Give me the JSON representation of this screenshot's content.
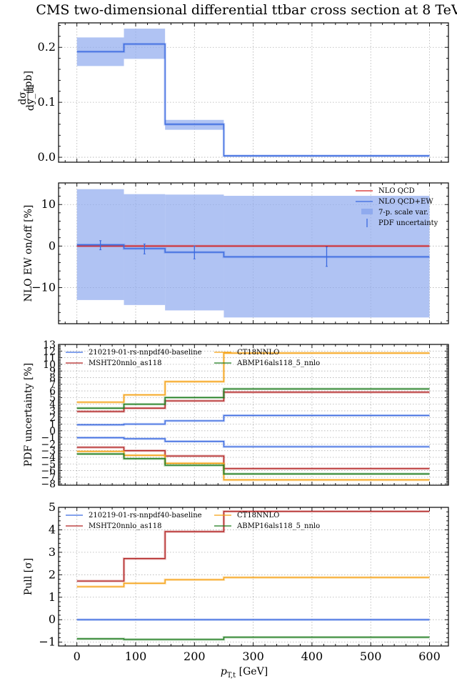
{
  "figure_title": "CMS two-dimensional differential ttbar cross section at 8 TeV",
  "colors": {
    "blue": "#3b6ae0",
    "band": "#8faaee",
    "red": "#d42020",
    "dark_red": "#b22222",
    "orange": "#f5a010",
    "green": "#1a7a1a"
  },
  "chart_data": [
    {
      "type": "line",
      "id": "xsec",
      "title": "CMS two-dimensional differential ttbar cross section at 8 TeV",
      "xlabel": "",
      "ylabel": "dσ/dy_tt [pb]",
      "ylabel_fraction": {
        "num": "dσ",
        "den": "dy_tt",
        "unit": "[pb]"
      },
      "bin_edges": [
        0,
        80,
        150,
        250,
        600
      ],
      "ylim": [
        -0.009,
        0.2445
      ],
      "yticks": [
        0.0,
        0.1,
        0.2
      ],
      "ytick_labels": [
        "0.0",
        "0.1",
        "0.2"
      ],
      "grid": true,
      "series": [
        {
          "name": "central",
          "style": "step",
          "color": "blue",
          "values": [
            0.192,
            0.206,
            0.06,
            0.0026
          ]
        },
        {
          "name": "band",
          "style": "band",
          "color": "band",
          "lower": [
            0.166,
            0.179,
            0.05,
            0.0012
          ],
          "upper": [
            0.218,
            0.234,
            0.068,
            0.004
          ]
        }
      ]
    },
    {
      "type": "line",
      "id": "ew",
      "xlabel": "",
      "ylabel": "NLO EW on/off [%]",
      "bin_edges": [
        0,
        80,
        150,
        250,
        600
      ],
      "ylim": [
        -18.7,
        15.2
      ],
      "yticks": [
        -10,
        0,
        10
      ],
      "ytick_labels": [
        "−10",
        "0",
        "10"
      ],
      "grid": true,
      "legend": {
        "placement": "top-right",
        "entries": [
          {
            "label": "NLO QCD",
            "kind": "line",
            "color": "red"
          },
          {
            "label": "NLO QCD+EW",
            "kind": "line",
            "color": "blue"
          },
          {
            "label": "7-p. scale var.",
            "kind": "patch",
            "color": "band"
          },
          {
            "label": "PDF uncertainty",
            "kind": "errorbar",
            "color": "blue"
          }
        ]
      },
      "series": [
        {
          "name": "7-p. scale var.",
          "style": "band",
          "color": "band",
          "lower": [
            -13.0,
            -14.2,
            -15.5,
            -17.2
          ],
          "upper": [
            13.7,
            12.5,
            12.4,
            12.1
          ]
        },
        {
          "name": "NLO QCD",
          "style": "step",
          "color": "red",
          "values": [
            0,
            0,
            0,
            0
          ]
        },
        {
          "name": "NLO QCD+EW",
          "style": "step",
          "color": "blue",
          "values": [
            0.3,
            -0.6,
            -1.5,
            -2.6
          ]
        },
        {
          "name": "PDF uncertainty",
          "style": "errorbar",
          "color": "blue",
          "x": [
            40,
            115,
            200,
            425
          ],
          "lower": [
            -0.9,
            -1.9,
            -3.1,
            -4.9
          ],
          "upper": [
            1.3,
            0.5,
            0.0,
            -0.2
          ]
        }
      ]
    },
    {
      "type": "line",
      "id": "pdfunc",
      "xlabel": "",
      "ylabel": "PDF uncertainty [%]",
      "bin_edges": [
        0,
        80,
        150,
        250,
        600
      ],
      "ylim": [
        -8.2,
        13.0
      ],
      "yticks": [
        -8,
        -7,
        -6,
        -5,
        -4,
        -3,
        -2,
        -1,
        0,
        1,
        2,
        3,
        4,
        5,
        6,
        7,
        8,
        9,
        10,
        11,
        12,
        13
      ],
      "ytick_labels": [
        "−8",
        "−7",
        "−6",
        "−5",
        "−4",
        "−3",
        "−2",
        "−1",
        "0",
        "1",
        "2",
        "3",
        "4",
        "5",
        "6",
        "7",
        "8",
        "9",
        "10",
        "11",
        "12",
        "13"
      ],
      "grid": true,
      "legend": {
        "placement": "top-left",
        "columns": 2,
        "entries": [
          {
            "label": "210219-01-rs-nnpdf40-baseline",
            "color": "blue"
          },
          {
            "label": "MSHT20nnlo_as118",
            "color": "dark_red"
          },
          {
            "label": "CT18NNLO",
            "color": "orange"
          },
          {
            "label": "ABMP16als118_5_nnlo",
            "color": "green"
          }
        ]
      },
      "series": [
        {
          "name": "210219-01-rs-nnpdf40-baseline",
          "color": "blue",
          "upper": [
            0.9,
            1.0,
            1.5,
            2.3
          ],
          "lower": [
            -1.05,
            -1.2,
            -1.6,
            -2.4
          ]
        },
        {
          "name": "MSHT20nnlo_as118",
          "color": "dark_red",
          "upper": [
            2.9,
            3.4,
            4.5,
            5.8
          ],
          "lower": [
            -2.5,
            -3.0,
            -3.8,
            -5.7
          ]
        },
        {
          "name": "CT18NNLO",
          "color": "orange",
          "upper": [
            4.3,
            5.4,
            7.4,
            11.7
          ],
          "lower": [
            -3.1,
            -3.7,
            -4.9,
            -7.4
          ]
        },
        {
          "name": "ABMP16als118_5_nnlo",
          "color": "green",
          "upper": [
            3.4,
            4.0,
            5.0,
            6.3
          ],
          "lower": [
            -3.5,
            -4.2,
            -5.2,
            -6.5
          ]
        }
      ]
    },
    {
      "type": "line",
      "id": "pull",
      "xlabel": "p_T,t [GeV]",
      "ylabel": "Pull [σ]",
      "bin_edges": [
        0,
        80,
        150,
        250,
        600
      ],
      "xlim": [
        -31,
        633
      ],
      "xticks": [
        0,
        100,
        200,
        300,
        400,
        500,
        600
      ],
      "xtick_labels": [
        "0",
        "100",
        "200",
        "300",
        "400",
        "500",
        "600"
      ],
      "ylim": [
        -1.17,
        5.0
      ],
      "yticks": [
        -1,
        0,
        1,
        2,
        3,
        4,
        5
      ],
      "ytick_labels": [
        "−1",
        "0",
        "1",
        "2",
        "3",
        "4",
        "5"
      ],
      "grid": true,
      "legend": {
        "placement": "top-left",
        "columns": 2,
        "entries": [
          {
            "label": "210219-01-rs-nnpdf40-baseline",
            "color": "blue"
          },
          {
            "label": "MSHT20nnlo_as118",
            "color": "dark_red"
          },
          {
            "label": "CT18NNLO",
            "color": "orange"
          },
          {
            "label": "ABMP16als118_5_nnlo",
            "color": "green"
          }
        ]
      },
      "series": [
        {
          "name": "210219-01-rs-nnpdf40-baseline",
          "color": "blue",
          "values": [
            0,
            0,
            0,
            0
          ]
        },
        {
          "name": "MSHT20nnlo_as118",
          "color": "dark_red",
          "values": [
            1.72,
            2.72,
            3.92,
            4.82
          ]
        },
        {
          "name": "CT18NNLO",
          "color": "orange",
          "values": [
            1.47,
            1.62,
            1.78,
            1.88
          ]
        },
        {
          "name": "ABMP16als118_5_nnlo",
          "color": "green",
          "values": [
            -0.85,
            -0.88,
            -0.88,
            -0.78
          ]
        }
      ]
    }
  ]
}
